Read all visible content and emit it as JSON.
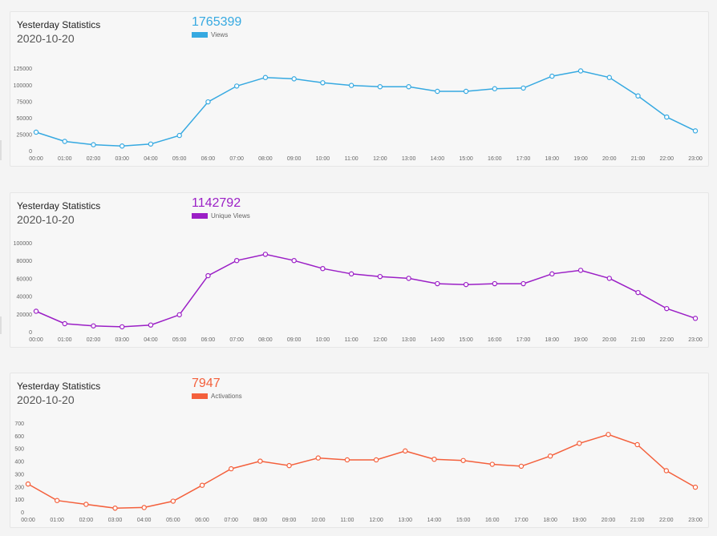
{
  "panels": [
    {
      "title": "Yesterday Statistics",
      "date": "2020-10-20",
      "total": "1765399",
      "legend": "Views",
      "color": "#36a9e1"
    },
    {
      "title": "Yesterday Statistics",
      "date": "2020-10-20",
      "total": "1142792",
      "legend": "Unique Views",
      "color": "#9b1fc6"
    },
    {
      "title": "Yesterday Statistics",
      "date": "2020-10-20",
      "total": "7947",
      "legend": "Activations",
      "color": "#f4603c"
    }
  ],
  "chart_data": [
    {
      "type": "line",
      "categories": [
        "00:00",
        "01:00",
        "02:00",
        "03:00",
        "04:00",
        "05:00",
        "06:00",
        "07:00",
        "08:00",
        "09:00",
        "10:00",
        "11:00",
        "12:00",
        "13:00",
        "14:00",
        "15:00",
        "16:00",
        "17:00",
        "18:00",
        "19:00",
        "20:00",
        "21:00",
        "22:00",
        "23:00"
      ],
      "series": [
        {
          "name": "Views",
          "values": [
            28000,
            14000,
            9000,
            7000,
            10000,
            23000,
            74000,
            98000,
            111000,
            109000,
            103000,
            99000,
            97000,
            97000,
            90000,
            90000,
            94000,
            95000,
            113000,
            121000,
            111000,
            83000,
            51000,
            30000
          ]
        }
      ],
      "yticks": [
        0,
        25000,
        50000,
        75000,
        100000,
        125000
      ],
      "ylim": [
        0,
        135000
      ]
    },
    {
      "type": "line",
      "categories": [
        "00:00",
        "01:00",
        "02:00",
        "03:00",
        "04:00",
        "05:00",
        "06:00",
        "07:00",
        "08:00",
        "09:00",
        "10:00",
        "11:00",
        "12:00",
        "13:00",
        "14:00",
        "15:00",
        "16:00",
        "17:00",
        "18:00",
        "19:00",
        "20:00",
        "21:00",
        "22:00",
        "23:00"
      ],
      "series": [
        {
          "name": "Unique Views",
          "values": [
            23000,
            9000,
            6500,
            5500,
            7500,
            19000,
            63000,
            80000,
            87000,
            80000,
            71000,
            65000,
            62000,
            60000,
            54000,
            53000,
            54000,
            54000,
            65000,
            69000,
            60000,
            44000,
            26000,
            15000
          ]
        }
      ],
      "yticks": [
        0,
        20000,
        40000,
        60000,
        80000,
        100000
      ],
      "ylim": [
        0,
        100000
      ]
    },
    {
      "type": "line",
      "categories": [
        "00:00",
        "01:00",
        "02:00",
        "03:00",
        "04:00",
        "05:00",
        "06:00",
        "07:00",
        "08:00",
        "09:00",
        "10:00",
        "11:00",
        "12:00",
        "13:00",
        "14:00",
        "15:00",
        "16:00",
        "17:00",
        "18:00",
        "19:00",
        "20:00",
        "21:00",
        "22:00",
        "23:00"
      ],
      "series": [
        {
          "name": "Activations",
          "values": [
            220,
            90,
            60,
            30,
            35,
            85,
            210,
            340,
            400,
            365,
            425,
            410,
            410,
            480,
            415,
            405,
            375,
            360,
            440,
            540,
            610,
            530,
            325,
            195
          ]
        }
      ],
      "yticks": [
        0,
        100,
        200,
        300,
        400,
        500,
        600,
        700
      ],
      "ylim": [
        0,
        700
      ]
    }
  ]
}
